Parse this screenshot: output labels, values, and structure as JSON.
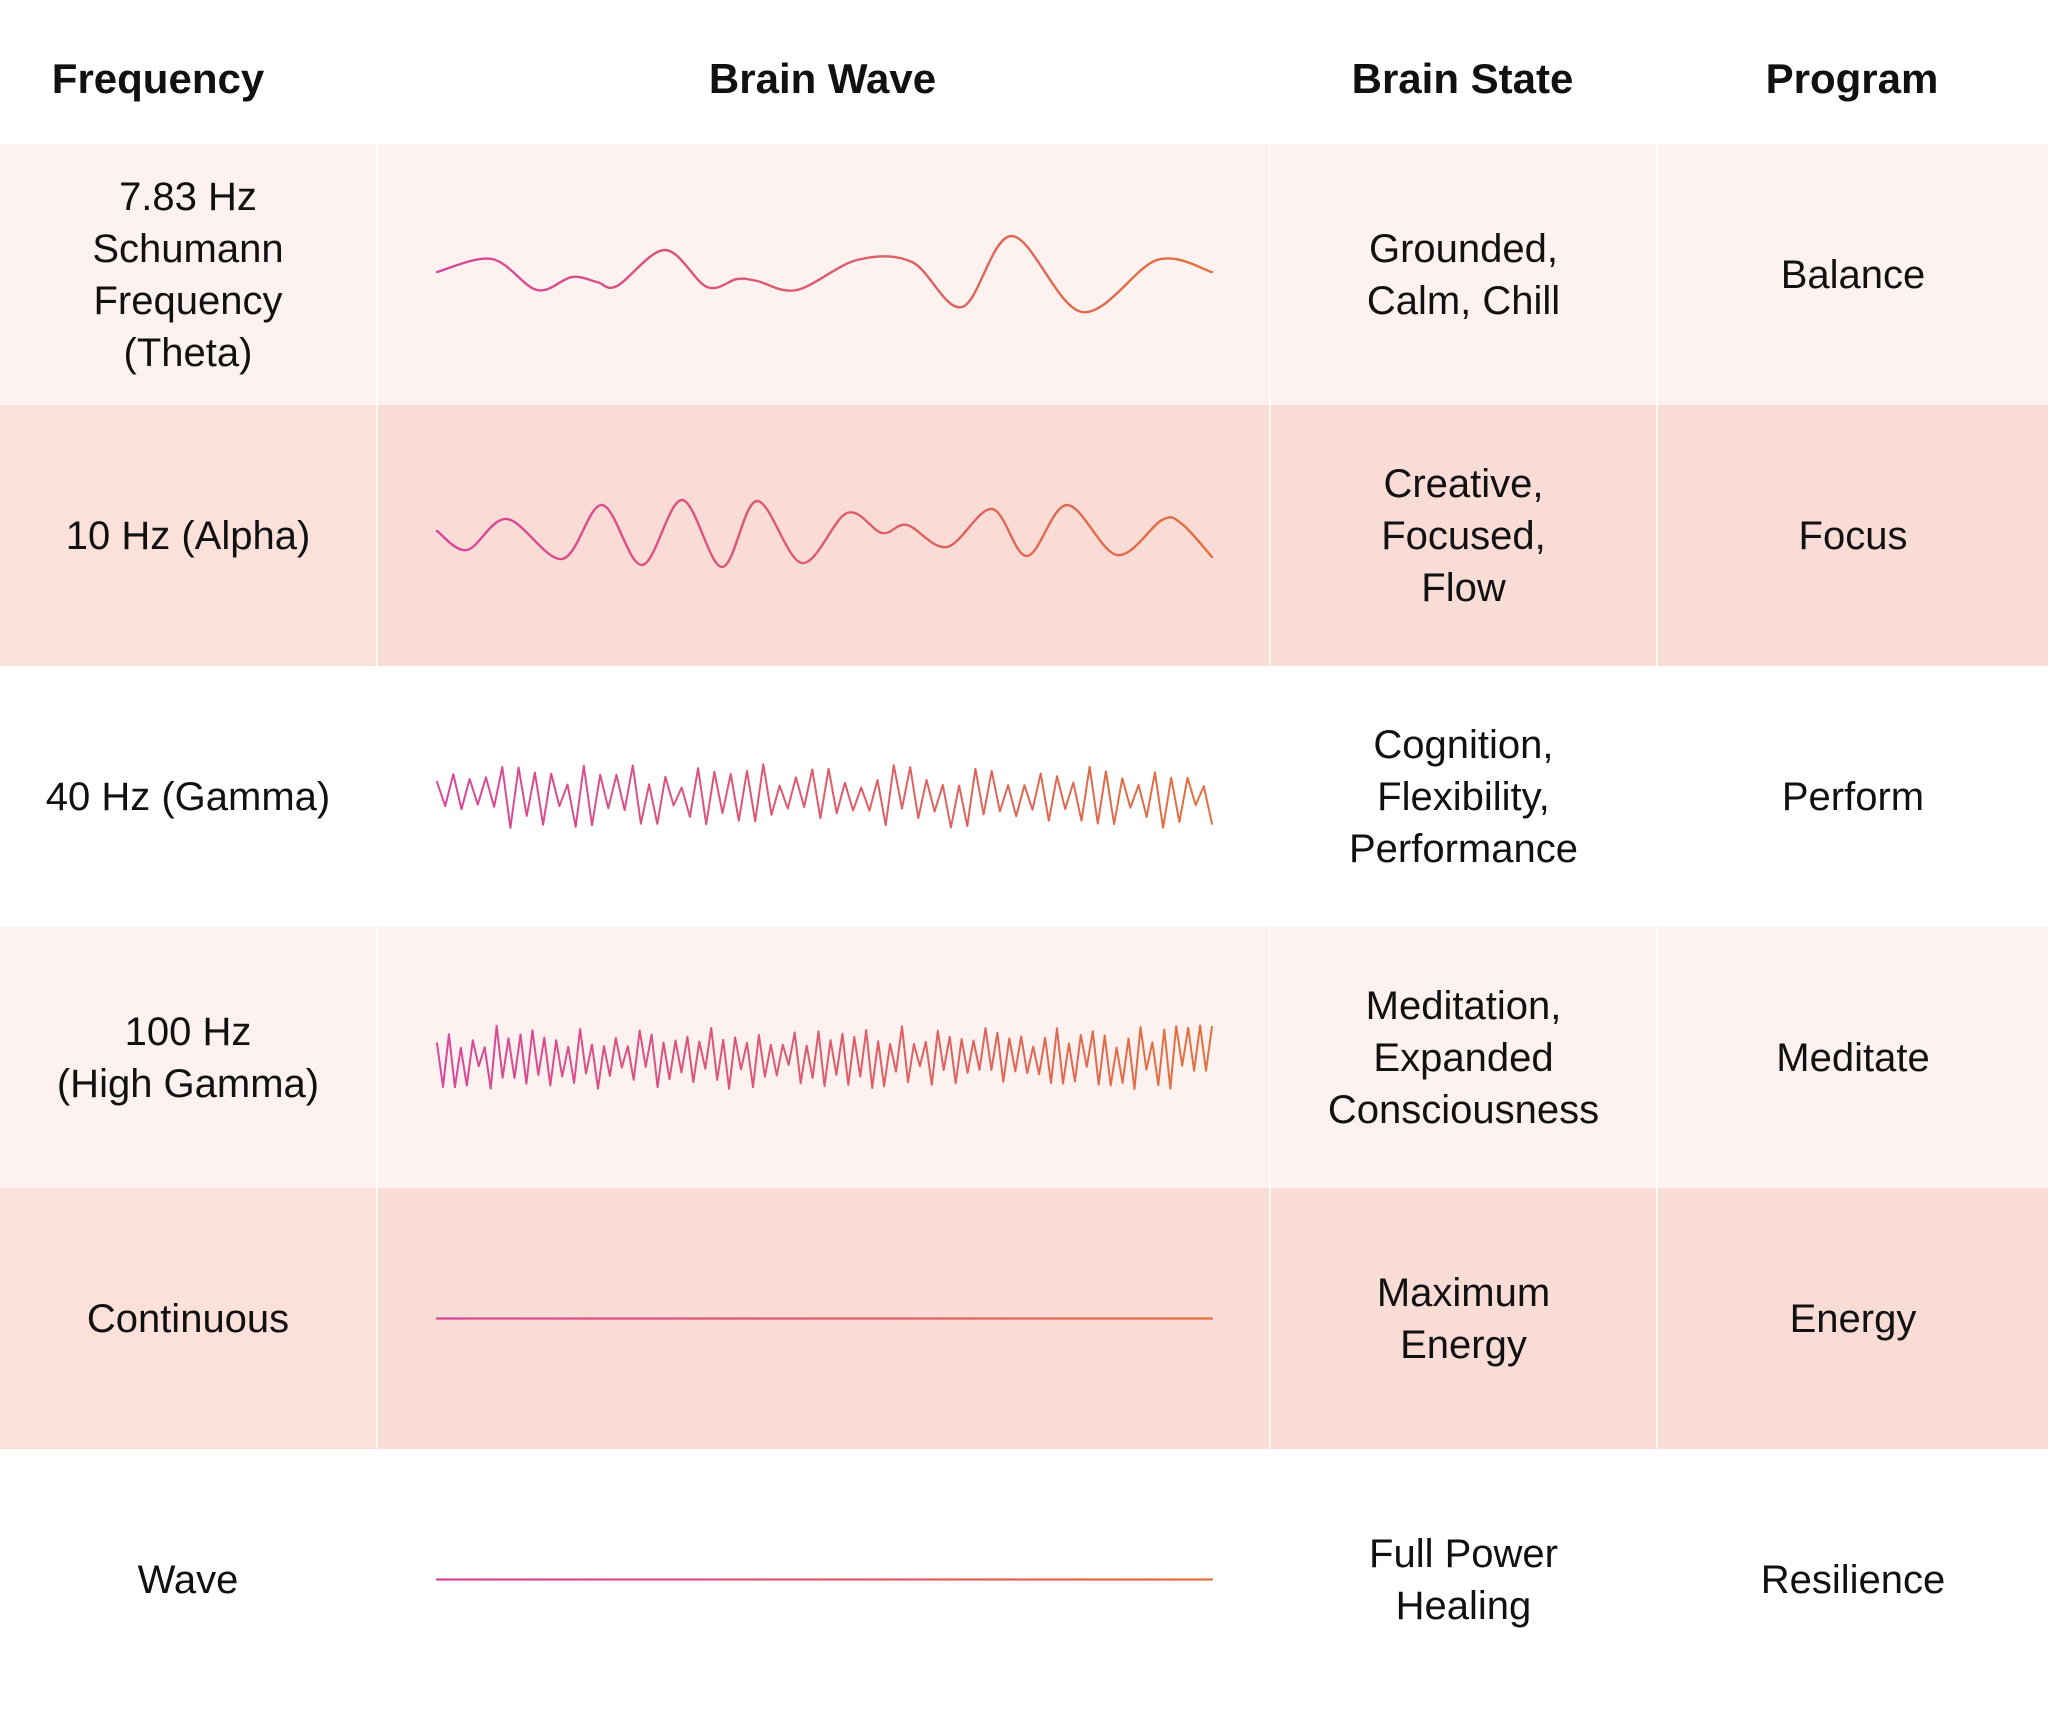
{
  "header": {
    "frequency": "Frequency",
    "brain_wave": "Brain Wave",
    "brain_state": "Brain State",
    "program": "Program"
  },
  "colors": {
    "row_light_bg": "#fdf2ef",
    "row_dark_freq_bg": "#fbe1d9",
    "row_dark_bg": "#fadcd7",
    "row_white_bg": "#ffffff",
    "wave_start": "#d9469a",
    "wave_end": "#e3703e"
  },
  "rows": [
    {
      "frequency": "7.83 Hz\nSchumann\nFrequency\n(Theta)",
      "brain_state": "Grounded,\nCalm, Chill",
      "program": "Balance",
      "wave_type": "theta",
      "shade": "light"
    },
    {
      "frequency": "10 Hz (Alpha)",
      "brain_state": "Creative,\nFocused,\nFlow",
      "program": "Focus",
      "wave_type": "alpha",
      "shade": "dark"
    },
    {
      "frequency": "40 Hz (Gamma)",
      "brain_state": "Cognition,\nFlexibility,\nPerformance",
      "program": "Perform",
      "wave_type": "gamma",
      "shade": "white"
    },
    {
      "frequency": "100 Hz\n(High Gamma)",
      "brain_state": "Meditation,\nExpanded\nConsciousness",
      "program": "Meditate",
      "wave_type": "high-gamma",
      "shade": "light"
    },
    {
      "frequency": "Continuous",
      "brain_state": "Maximum\nEnergy",
      "program": "Energy",
      "wave_type": "flat",
      "shade": "dark"
    },
    {
      "frequency": "Wave",
      "brain_state": "Full Power\nHealing",
      "program": "Resilience",
      "wave_type": "flat",
      "shade": "white"
    }
  ]
}
